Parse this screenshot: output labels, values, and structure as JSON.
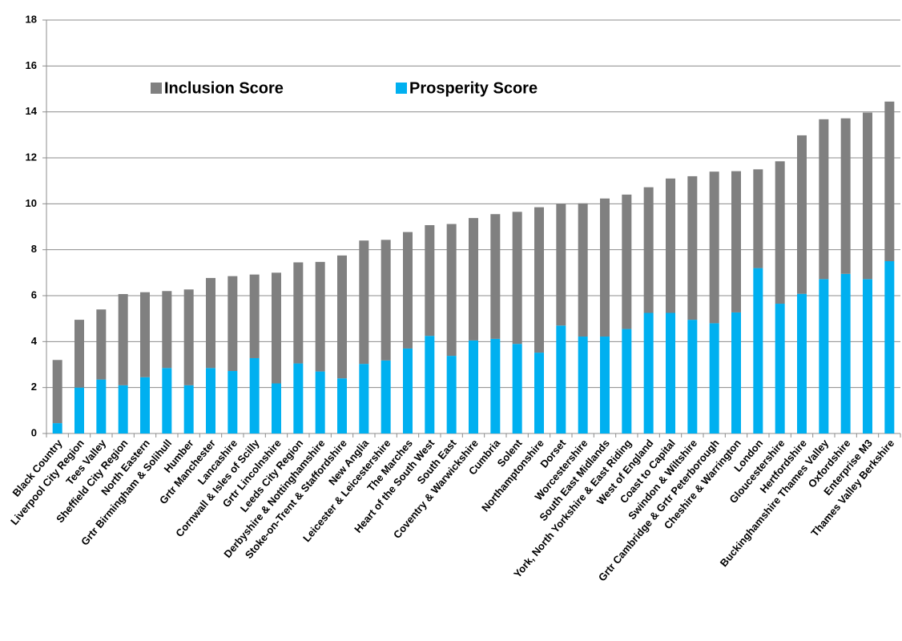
{
  "chart_data": {
    "type": "stacked_bar",
    "categories": [
      "Black Country",
      "Liverpool City Region",
      "Tees Valley",
      "Sheffield City Region",
      "North Eastern",
      "Grtr Birmingham & Solihull",
      "Humber",
      "Grtr Manchester",
      "Lancashire",
      "Cornwall & Isles of Scilly",
      "Grtr Lincolnshire",
      "Leeds City Region",
      "Derbyshire & Nottinghamshire",
      "Stoke-on-Trent & Staffordshire",
      "New Anglia",
      "Leicester & Leicestershire",
      "The Marches",
      "Heart of the South West",
      "South East",
      "Coventry & Warwickshire",
      "Cumbria",
      "Solent",
      "Northamptonshire",
      "Dorset",
      "Worcestershire",
      "South East Midlands",
      "York, North Yorkshire & East Riding",
      "West of England",
      "Coast to Capital",
      "Swindon & Wiltshire",
      "Grtr Cambridge & Grtr Peterborough",
      "Cheshire & Warrington",
      "London",
      "Gloucestershire",
      "Hertfordshire",
      "Buckinghamshire Thames Valley",
      "Oxfordshire",
      "Enterprise M3",
      "Thames Valley Berkshire"
    ],
    "series": [
      {
        "name": "Prosperity Score",
        "color": "#00b0f0",
        "values": [
          0.45,
          2.0,
          2.35,
          2.1,
          2.45,
          2.85,
          2.1,
          2.85,
          2.72,
          3.28,
          2.18,
          3.05,
          2.7,
          2.4,
          3.03,
          3.18,
          3.7,
          4.25,
          3.38,
          4.05,
          4.12,
          3.9,
          3.52,
          4.7,
          4.22,
          4.22,
          4.55,
          5.25,
          5.25,
          4.95,
          4.8,
          5.27,
          7.2,
          5.65,
          6.08,
          6.72,
          6.95,
          6.72,
          7.5
        ]
      },
      {
        "name": "Inclusion Score",
        "color": "#808080",
        "values": [
          2.75,
          2.95,
          3.05,
          3.97,
          3.7,
          3.35,
          4.17,
          3.92,
          4.13,
          3.64,
          4.82,
          4.4,
          4.77,
          5.35,
          5.37,
          5.25,
          5.07,
          4.82,
          5.74,
          5.33,
          5.43,
          5.75,
          6.33,
          5.3,
          5.8,
          6.01,
          5.85,
          5.47,
          5.85,
          6.25,
          6.6,
          6.15,
          4.3,
          6.2,
          6.9,
          6.96,
          6.77,
          7.25,
          6.95
        ]
      }
    ],
    "ylim": [
      0,
      18
    ],
    "yticks": [
      0,
      2,
      4,
      6,
      8,
      10,
      12,
      14,
      16,
      18
    ],
    "grid": true,
    "legend": "top-left"
  }
}
